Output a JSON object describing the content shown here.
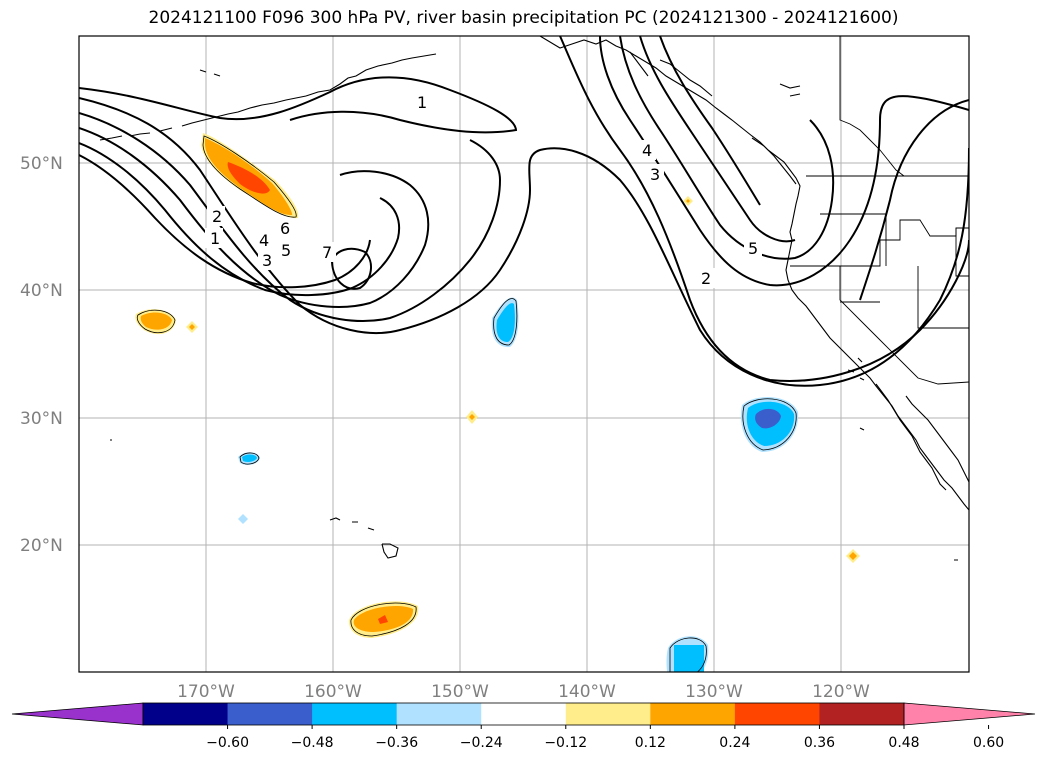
{
  "title": "2024121100 F096 300 hPa PV, river basin precipitation PC (2024121300 - 2024121600)",
  "map": {
    "lon_range": [
      -180,
      -110
    ],
    "lat_range": [
      10,
      60
    ],
    "lat_labels": [
      {
        "lat": 50,
        "text": "50°N"
      },
      {
        "lat": 40,
        "text": "40°N"
      },
      {
        "lat": 30,
        "text": "30°N"
      },
      {
        "lat": 20,
        "text": "20°N"
      }
    ],
    "lon_labels": [
      {
        "lon": -170,
        "text": "170°W"
      },
      {
        "lon": -160,
        "text": "160°W"
      },
      {
        "lon": -150,
        "text": "150°W"
      },
      {
        "lon": -140,
        "text": "140°W"
      },
      {
        "lon": -130,
        "text": "130°W"
      },
      {
        "lon": -120,
        "text": "120°W"
      }
    ],
    "pv_contour_labels": [
      "1",
      "2",
      "3",
      "4",
      "5",
      "6",
      "7"
    ]
  },
  "colorbar": {
    "ticks": [
      "−0.60",
      "−0.48",
      "−0.36",
      "−0.24",
      "−0.12",
      "0.12",
      "0.24",
      "0.36",
      "0.48",
      "0.60"
    ],
    "colors": [
      "#9932cc",
      "#00008b",
      "#3a5fcd",
      "#00bfff",
      "#b0e2ff",
      "#ffffff",
      "#ffec8b",
      "#ffa500",
      "#ff4500",
      "#b22222",
      "#ff82ab"
    ]
  }
}
